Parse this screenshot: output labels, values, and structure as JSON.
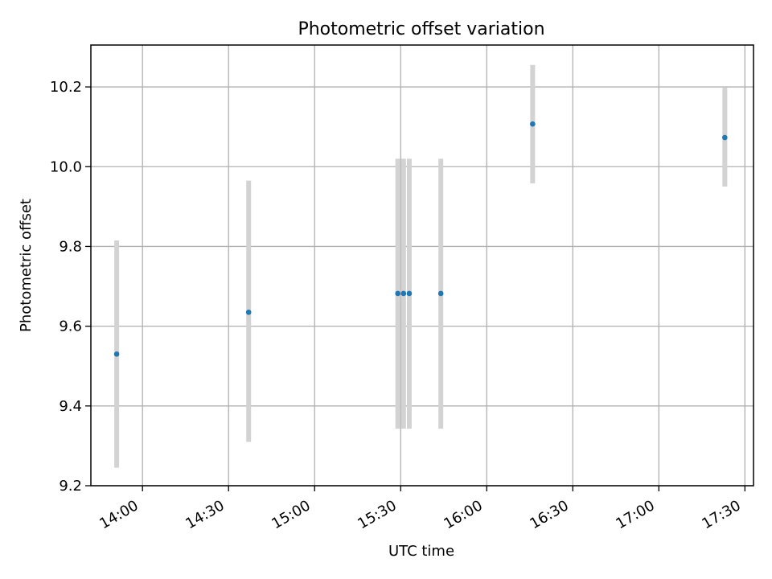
{
  "chart_data": {
    "type": "scatter",
    "title": "Photometric offset variation",
    "xlabel": "UTC time",
    "ylabel": "Photometric offset",
    "x_ticks": [
      "14:00",
      "14:30",
      "15:00",
      "15:30",
      "16:00",
      "16:30",
      "17:00",
      "17:30"
    ],
    "y_ticks": [
      "9.2",
      "9.4",
      "9.6",
      "9.8",
      "10.0",
      "10.2"
    ],
    "xlim": [
      "13:42",
      "17:33"
    ],
    "ylim": [
      9.2,
      10.305
    ],
    "grid": true,
    "points": [
      {
        "x": "13:51",
        "y": 9.53,
        "lo": 9.245,
        "hi": 9.815
      },
      {
        "x": "14:37",
        "y": 9.635,
        "lo": 9.31,
        "hi": 9.965
      },
      {
        "x": "15:29",
        "y": 9.682,
        "lo": 9.343,
        "hi": 10.02
      },
      {
        "x": "15:31",
        "y": 9.682,
        "lo": 9.343,
        "hi": 10.02
      },
      {
        "x": "15:33",
        "y": 9.682,
        "lo": 9.343,
        "hi": 10.02
      },
      {
        "x": "15:44",
        "y": 9.682,
        "lo": 9.343,
        "hi": 10.02
      },
      {
        "x": "16:16",
        "y": 10.107,
        "lo": 9.958,
        "hi": 10.255
      },
      {
        "x": "17:23",
        "y": 10.073,
        "lo": 9.95,
        "hi": 10.198
      }
    ],
    "colors": {
      "point": "#1f77b4",
      "errorbar": "#d3d3d3",
      "grid": "#b0b0b0"
    }
  }
}
